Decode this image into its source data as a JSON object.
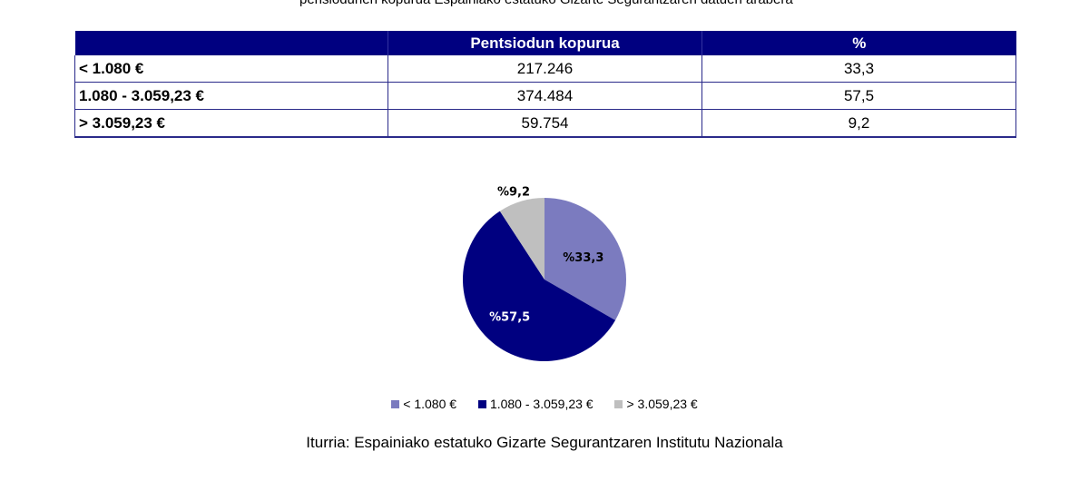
{
  "top_text": "pensiodunen kopurua Espainiako estatuko Gizarte Segurantzaren datuen arabera",
  "table": {
    "headers": [
      "",
      "Pentsiodun kopurua",
      "%"
    ],
    "rows": [
      {
        "label": "< 1.080 €",
        "count": "217.246",
        "percent": "33,3"
      },
      {
        "label": "1.080 - 3.059,23 €",
        "count": "374.484",
        "percent": "57,5"
      },
      {
        "label": "> 3.059,23 €",
        "count": "59.754",
        "percent": "9,2"
      }
    ]
  },
  "colors": {
    "header_bg": "#000080",
    "slice_low": "#7b7bbf",
    "slice_mid": "#000080",
    "slice_high": "#bfbfbf"
  },
  "chart_data": {
    "type": "pie",
    "title": "",
    "categories": [
      "< 1.080 €",
      "1.080 - 3.059,23 €",
      "> 3.059,23 €"
    ],
    "values": [
      33.3,
      57.5,
      9.2
    ],
    "labels": [
      "%33,3",
      "%57,5",
      "%9,2"
    ],
    "legend_position": "bottom"
  },
  "legend": {
    "items": [
      "< 1.080 €",
      "1.080 - 3.059,23 €",
      "> 3.059,23 €"
    ]
  },
  "source": "Iturria: Espainiako estatuko Gizarte Segurantzaren Institutu Nazionala"
}
